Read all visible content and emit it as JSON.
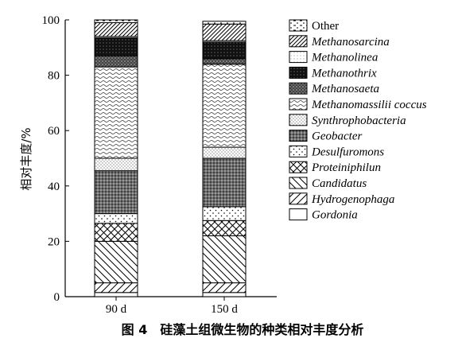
{
  "chart_data": {
    "type": "bar",
    "stacked": true,
    "categories": [
      "90 d",
      "150 d"
    ],
    "ylabel": "相对丰度/%",
    "ylim": [
      0,
      100
    ],
    "yticks": [
      0,
      20,
      40,
      60,
      80,
      100
    ],
    "legend_position": "right",
    "caption": "图 4　硅藻土组微生物的种类相对丰度分析",
    "series": [
      {
        "name": "Gordonia",
        "values": [
          1.5,
          1.5
        ],
        "pattern": "none"
      },
      {
        "name": "Hydrogenophaga",
        "values": [
          3.5,
          3.5
        ],
        "pattern": "diag-right"
      },
      {
        "name": "Candidatus",
        "values": [
          15,
          17
        ],
        "pattern": "diag-left"
      },
      {
        "name": "Proteiniphilun",
        "values": [
          6.5,
          5.5
        ],
        "pattern": "crosshatch-x"
      },
      {
        "name": "Desulfuromons",
        "values": [
          3.5,
          5
        ],
        "pattern": "sparse-dots"
      },
      {
        "name": "Geobacter",
        "values": [
          15.5,
          17.5
        ],
        "pattern": "dense-dark"
      },
      {
        "name": "Synthrophobacteria",
        "values": [
          4.5,
          4
        ],
        "pattern": "fine-dots"
      },
      {
        "name": "Methanomassilii coccus",
        "values": [
          33,
          30
        ],
        "pattern": "wavy"
      },
      {
        "name": "Methanosaeta",
        "values": [
          4,
          2
        ],
        "pattern": "dark-dots"
      },
      {
        "name": "Methanothrix",
        "values": [
          6.5,
          6
        ],
        "pattern": "black-grid"
      },
      {
        "name": "Methanolinea",
        "values": [
          0.5,
          0.5
        ],
        "pattern": "tiny-dots"
      },
      {
        "name": "Methanosarcina",
        "values": [
          5,
          6
        ],
        "pattern": "diag-right-dense"
      },
      {
        "name": "Other",
        "values": [
          1,
          1
        ],
        "pattern": "dashes"
      }
    ]
  },
  "legend_order": [
    "Other",
    "Methanosarcina",
    "Methanolinea",
    "Methanothrix",
    "Methanosaeta",
    "Methanomassilii coccus",
    "Synthrophobacteria",
    "Geobacter",
    "Desulfuromons",
    "Proteiniphilun",
    "Candidatus",
    "Hydrogenophaga",
    "Gordonia"
  ]
}
